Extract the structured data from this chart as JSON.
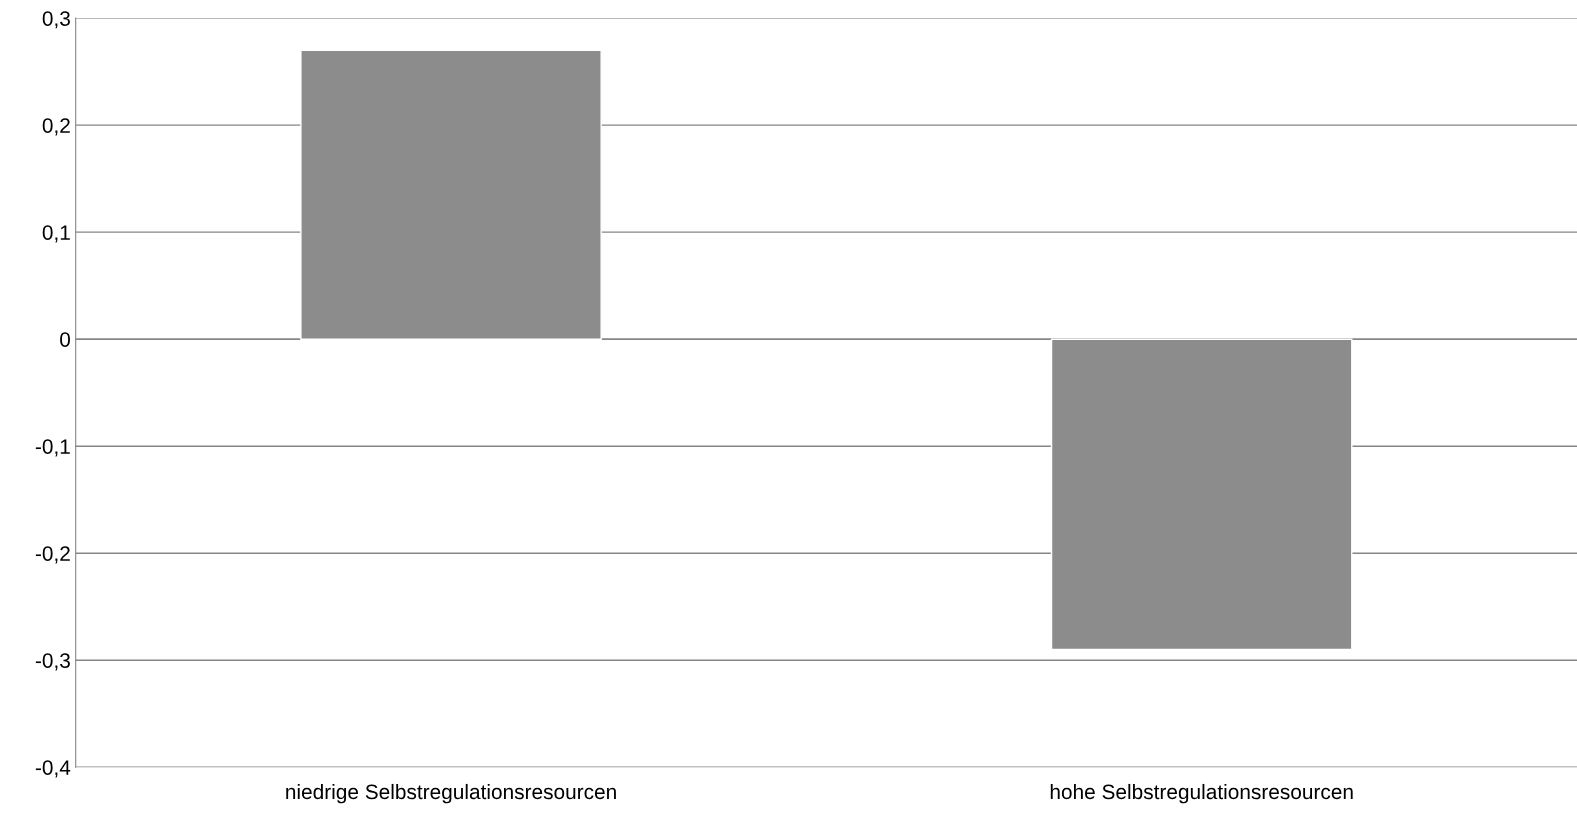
{
  "chart_data": {
    "type": "bar",
    "categories": [
      "niedrige Selbstregulationsresourcen",
      "hohe Selbstregulationsresourcen"
    ],
    "values": [
      0.27,
      -0.29
    ],
    "color": "#8c8c8c",
    "ylim": [
      -0.4,
      0.3
    ],
    "yticks": [
      {
        "value": -0.4,
        "label": "-0,4"
      },
      {
        "value": -0.3,
        "label": "-0,3"
      },
      {
        "value": -0.2,
        "label": "-0,2"
      },
      {
        "value": -0.1,
        "label": "-0,1"
      },
      {
        "value": 0,
        "label": "0"
      },
      {
        "value": 0.1,
        "label": "0,1"
      },
      {
        "value": 0.2,
        "label": "0,2"
      },
      {
        "value": 0.3,
        "label": "0,3"
      }
    ],
    "grid": "y",
    "legend": false
  }
}
